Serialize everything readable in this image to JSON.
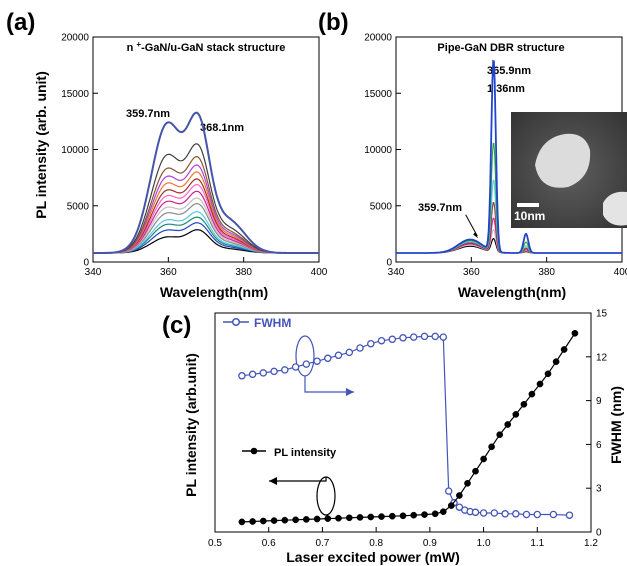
{
  "chart_data": [
    {
      "panel": "(a)",
      "type": "line",
      "title": "n+-GaN/u-GaN stack structure",
      "xlabel": "Wavelength(nm)",
      "ylabel": "PL intensity (arb. unit)",
      "xlim": [
        340,
        400
      ],
      "ylim": [
        0,
        20000
      ],
      "xticks": [
        340,
        360,
        380,
        400
      ],
      "yticks": [
        0,
        5000,
        10000,
        15000,
        20000
      ],
      "grid": false,
      "annotations": [
        "359.7nm",
        "368.1nm"
      ],
      "peaks_nm": [
        359.7,
        368.1
      ],
      "curve_colors": [
        "#000000",
        "#2244cc",
        "#1a8a7a",
        "#55c8e8",
        "#888888",
        "#c0c0c0",
        "#cc2288",
        "#ff66cc",
        "#993322",
        "#ee7733",
        "#aa44dd",
        "#885533",
        "#404040",
        "#4455aa"
      ],
      "series": [
        {
          "peak_values": [
            2200,
            2600
          ],
          "color": "#000000"
        },
        {
          "peak_values": [
            2800,
            3100
          ],
          "color": "#2244cc"
        },
        {
          "peak_values": [
            3300,
            3500
          ],
          "color": "#1a8a7a"
        },
        {
          "peak_values": [
            3700,
            3900
          ],
          "color": "#55c8e8"
        },
        {
          "peak_values": [
            4300,
            4500
          ],
          "color": "#888888"
        },
        {
          "peak_values": [
            4800,
            4900
          ],
          "color": "#c0c0c0"
        },
        {
          "peak_values": [
            5300,
            5400
          ],
          "color": "#cc2288"
        },
        {
          "peak_values": [
            5800,
            5900
          ],
          "color": "#ff66cc"
        },
        {
          "peak_values": [
            6300,
            6300
          ],
          "color": "#993322"
        },
        {
          "peak_values": [
            6900,
            6800
          ],
          "color": "#ee7733"
        },
        {
          "peak_values": [
            7500,
            7300
          ],
          "color": "#aa44dd"
        },
        {
          "peak_values": [
            8200,
            7900
          ],
          "color": "#885533"
        },
        {
          "peak_values": [
            9400,
            8800
          ],
          "color": "#404040"
        },
        {
          "peak_values": [
            12200,
            11000
          ],
          "color": "#4455aa"
        }
      ],
      "baseline": 800
    },
    {
      "panel": "(b)",
      "type": "line",
      "title": "Pipe-GaN DBR structure",
      "xlabel": "Wavelength(nm)",
      "ylabel": "",
      "xlim": [
        340,
        400
      ],
      "ylim": [
        0,
        20000
      ],
      "xticks": [
        340,
        360,
        380,
        400
      ],
      "yticks": [
        0,
        5000,
        10000,
        15000,
        20000
      ],
      "grid": false,
      "annotations": [
        "365.9nm",
        "1.36nm",
        "359.7nm"
      ],
      "inset_scale_label": "10nm",
      "main_peak_nm": 365.9,
      "main_peak_fwhm_nm": 1.36,
      "series": [
        {
          "peak_value": 17900,
          "shoulder_value": 2000,
          "color": "#2244cc"
        },
        {
          "peak_value": 10500,
          "shoulder_value": 1900,
          "color": "#22aa33"
        },
        {
          "peak_value": 7200,
          "shoulder_value": 1800,
          "color": "#55c8e8"
        },
        {
          "peak_value": 5200,
          "shoulder_value": 1700,
          "color": "#993322"
        },
        {
          "peak_value": 3800,
          "shoulder_value": 1600,
          "color": "#cc2288"
        },
        {
          "peak_value": 2800,
          "shoulder_value": 1500,
          "color": "#c0c0c0"
        },
        {
          "peak_value": 2000,
          "shoulder_value": 1400,
          "color": "#000000"
        }
      ],
      "baseline": 800
    },
    {
      "panel": "(c)",
      "type": "scatter",
      "xlabel": "Laser excited power (mW)",
      "ylabel": "PL intensity (arb.unit)",
      "y2label": "FWHM (nm)",
      "xlim": [
        0.5,
        1.2
      ],
      "xticks": [
        0.5,
        0.6,
        0.7,
        0.8,
        0.9,
        1.0,
        1.1,
        1.2
      ],
      "ylim_left": [
        0,
        1
      ],
      "y2lim": [
        0,
        15
      ],
      "y2ticks": [
        0,
        3,
        6,
        9,
        12,
        15
      ],
      "grid": false,
      "legend": [
        "FWHM",
        "PL intensity"
      ],
      "series": [
        {
          "name": "FWHM",
          "axis": "right",
          "color": "#4455bb",
          "marker": "open-circle",
          "x": [
            0.55,
            0.57,
            0.59,
            0.61,
            0.63,
            0.65,
            0.67,
            0.69,
            0.71,
            0.73,
            0.75,
            0.77,
            0.79,
            0.81,
            0.83,
            0.85,
            0.87,
            0.89,
            0.91,
            0.925,
            0.935,
            0.945,
            0.955,
            0.965,
            0.975,
            0.985,
            1.0,
            1.02,
            1.04,
            1.06,
            1.08,
            1.1,
            1.13,
            1.16
          ],
          "y": [
            10.7,
            10.8,
            10.9,
            11.0,
            11.1,
            11.3,
            11.5,
            11.7,
            11.9,
            12.1,
            12.3,
            12.6,
            12.9,
            13.1,
            13.2,
            13.3,
            13.35,
            13.4,
            13.4,
            13.35,
            2.8,
            2.0,
            1.7,
            1.5,
            1.4,
            1.35,
            1.3,
            1.3,
            1.25,
            1.25,
            1.2,
            1.2,
            1.2,
            1.15
          ]
        },
        {
          "name": "PL intensity",
          "axis": "left",
          "color": "#000000",
          "marker": "filled-circle",
          "x": [
            0.55,
            0.57,
            0.59,
            0.61,
            0.63,
            0.65,
            0.67,
            0.69,
            0.71,
            0.73,
            0.75,
            0.77,
            0.79,
            0.81,
            0.83,
            0.85,
            0.87,
            0.89,
            0.91,
            0.925,
            0.94,
            0.955,
            0.97,
            0.985,
            1.0,
            1.015,
            1.03,
            1.045,
            1.06,
            1.075,
            1.09,
            1.105,
            1.12,
            1.135,
            1.15,
            1.17
          ],
          "y": [
            0.05,
            0.052,
            0.054,
            0.056,
            0.058,
            0.06,
            0.062,
            0.064,
            0.066,
            0.068,
            0.07,
            0.072,
            0.074,
            0.076,
            0.078,
            0.08,
            0.083,
            0.086,
            0.09,
            0.1,
            0.13,
            0.18,
            0.24,
            0.3,
            0.36,
            0.42,
            0.48,
            0.53,
            0.58,
            0.63,
            0.68,
            0.73,
            0.78,
            0.84,
            0.9,
            0.98
          ]
        }
      ]
    }
  ]
}
